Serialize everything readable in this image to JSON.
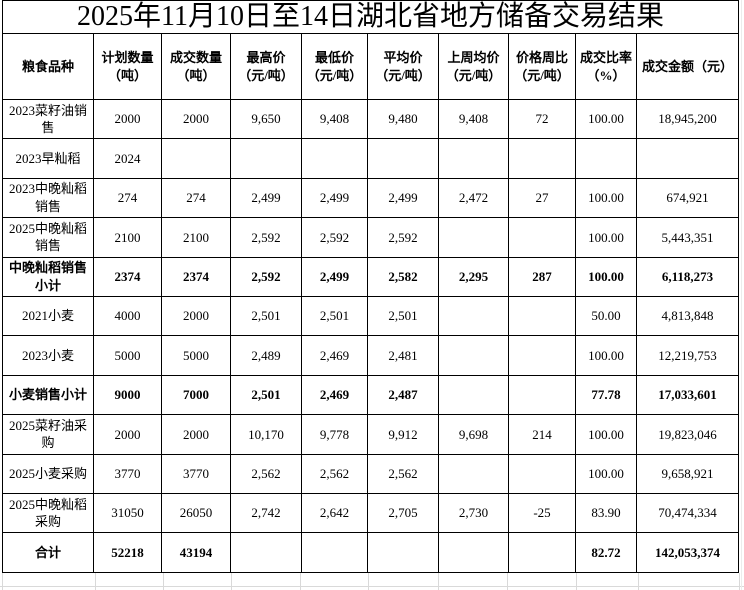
{
  "title": "2025年11月10日至14日湖北省地方储备交易结果",
  "table": {
    "columns": [
      "粮食品种",
      "计划数量\n（吨）",
      "成交数量\n（吨）",
      "最高价\n（元/吨）",
      "最低价\n（元/吨）",
      "平均价\n（元/吨）",
      "上周均价\n（元/吨）",
      "价格周比\n（元/吨）",
      "成交比率\n（%）",
      "成交金额（元）"
    ],
    "rows": [
      {
        "variety": "2023菜籽油销\n售",
        "values": [
          "2000",
          "2000",
          "9,650",
          "9,408",
          "9,480",
          "9,408",
          "72",
          "100.00",
          "18,945,200"
        ],
        "bold": false
      },
      {
        "variety": "2023早籼稻",
        "values": [
          "2024",
          "",
          "",
          "",
          "",
          "",
          "",
          "",
          ""
        ],
        "bold": false
      },
      {
        "variety": "2023中晚籼稻\n销售",
        "values": [
          "274",
          "274",
          "2,499",
          "2,499",
          "2,499",
          "2,472",
          "27",
          "100.00",
          "674,921"
        ],
        "bold": false
      },
      {
        "variety": "2025中晚籼稻\n销售",
        "values": [
          "2100",
          "2100",
          "2,592",
          "2,592",
          "2,592",
          "",
          "",
          "100.00",
          "5,443,351"
        ],
        "bold": false
      },
      {
        "variety": "中晚籼稻销售\n小计",
        "values": [
          "2374",
          "2374",
          "2,592",
          "2,499",
          "2,582",
          "2,295",
          "287",
          "100.00",
          "6,118,273"
        ],
        "bold": true
      },
      {
        "variety": "2021小麦",
        "values": [
          "4000",
          "2000",
          "2,501",
          "2,501",
          "2,501",
          "",
          "",
          "50.00",
          "4,813,848"
        ],
        "bold": false
      },
      {
        "variety": "2023小麦",
        "values": [
          "5000",
          "5000",
          "2,489",
          "2,469",
          "2,481",
          "",
          "",
          "100.00",
          "12,219,753"
        ],
        "bold": false
      },
      {
        "variety": "小麦销售小计",
        "values": [
          "9000",
          "7000",
          "2,501",
          "2,469",
          "2,487",
          "",
          "",
          "77.78",
          "17,033,601"
        ],
        "bold": true
      },
      {
        "variety": "2025菜籽油采\n购",
        "values": [
          "2000",
          "2000",
          "10,170",
          "9,778",
          "9,912",
          "9,698",
          "214",
          "100.00",
          "19,823,046"
        ],
        "bold": false
      },
      {
        "variety": "2025小麦采购",
        "values": [
          "3770",
          "3770",
          "2,562",
          "2,562",
          "2,562",
          "",
          "",
          "100.00",
          "9,658,921"
        ],
        "bold": false
      },
      {
        "variety": "2025中晚籼稻\n采购",
        "values": [
          "31050",
          "26050",
          "2,742",
          "2,642",
          "2,705",
          "2,730",
          "-25",
          "83.90",
          "70,474,334"
        ],
        "bold": false
      },
      {
        "variety": "合计",
        "values": [
          "52218",
          "43194",
          "",
          "",
          "",
          "",
          "",
          "82.72",
          "142,053,374"
        ],
        "bold": true
      }
    ]
  },
  "colors": {
    "border": "#000000",
    "faint_grid": "#d9d9d9",
    "background": "#ffffff",
    "text": "#000000"
  }
}
